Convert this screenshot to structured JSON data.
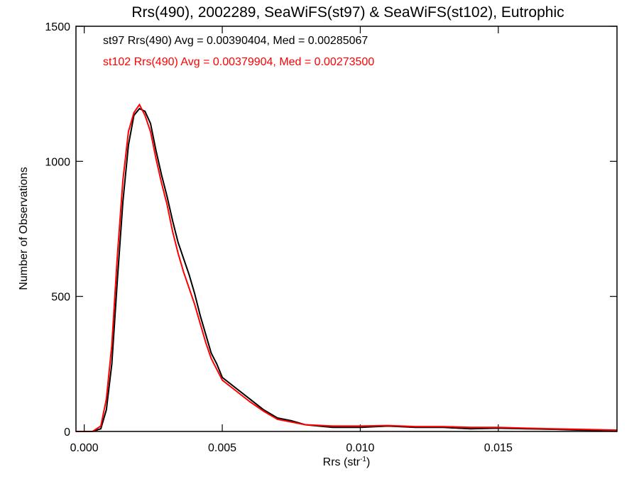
{
  "chart_data": {
    "type": "line",
    "title": "Rrs(490), 2002289, SeaWiFS(st97) & SeaWiFS(st102), Eutrophic",
    "xlabel": "Rrs (str",
    "xlabel_sup": "-1",
    "xlabel_end": ")",
    "ylabel": "Number of Observations",
    "xlim": [
      -0.0003,
      0.0193
    ],
    "ylim": [
      0,
      1500
    ],
    "x_ticks": [
      0.0,
      0.005,
      0.01,
      0.015
    ],
    "x_tick_labels": [
      "0.000",
      "0.005",
      "0.010",
      "0.015"
    ],
    "y_ticks": [
      0,
      500,
      1000,
      1500
    ],
    "y_tick_labels": [
      "0",
      "500",
      "1000",
      "1500"
    ],
    "grid": false,
    "legend_placement": "top-left",
    "series": [
      {
        "name": "st97",
        "label": "st97 Rrs(490) Avg = 0.00390404, Med = 0.00285067",
        "color": "#000000",
        "x": [
          -0.0003,
          0.0003,
          0.0006,
          0.0008,
          0.001,
          0.0012,
          0.0014,
          0.0016,
          0.0018,
          0.002,
          0.0022,
          0.0024,
          0.0026,
          0.0028,
          0.003,
          0.0032,
          0.0034,
          0.0036,
          0.0038,
          0.004,
          0.0042,
          0.0044,
          0.0046,
          0.0048,
          0.005,
          0.0055,
          0.006,
          0.0065,
          0.007,
          0.0075,
          0.008,
          0.009,
          0.01,
          0.011,
          0.012,
          0.013,
          0.014,
          0.015,
          0.016,
          0.017,
          0.018,
          0.0193
        ],
        "y": [
          0,
          0,
          10,
          80,
          250,
          560,
          850,
          1060,
          1170,
          1195,
          1185,
          1140,
          1040,
          950,
          870,
          780,
          700,
          640,
          580,
          510,
          430,
          360,
          290,
          250,
          200,
          160,
          120,
          80,
          50,
          40,
          25,
          15,
          15,
          20,
          15,
          15,
          10,
          12,
          10,
          8,
          5,
          3
        ]
      },
      {
        "name": "st102",
        "label": "st102 Rrs(490) Avg = 0.00379904, Med = 0.00273500",
        "color": "#ff0000",
        "x": [
          -0.0003,
          0.0003,
          0.0006,
          0.0008,
          0.001,
          0.0012,
          0.0014,
          0.0016,
          0.0018,
          0.002,
          0.0022,
          0.0024,
          0.0026,
          0.0028,
          0.003,
          0.0032,
          0.0034,
          0.0036,
          0.0038,
          0.004,
          0.0042,
          0.0044,
          0.0046,
          0.0048,
          0.005,
          0.0055,
          0.006,
          0.0065,
          0.007,
          0.0075,
          0.008,
          0.009,
          0.01,
          0.011,
          0.012,
          0.013,
          0.014,
          0.015,
          0.016,
          0.017,
          0.018,
          0.0193
        ],
        "y": [
          0,
          0,
          20,
          120,
          320,
          650,
          930,
          1110,
          1180,
          1210,
          1170,
          1110,
          1010,
          920,
          840,
          740,
          660,
          590,
          530,
          470,
          400,
          330,
          270,
          230,
          190,
          150,
          110,
          75,
          45,
          35,
          25,
          20,
          20,
          22,
          18,
          18,
          15,
          15,
          12,
          10,
          8,
          5
        ]
      }
    ]
  }
}
